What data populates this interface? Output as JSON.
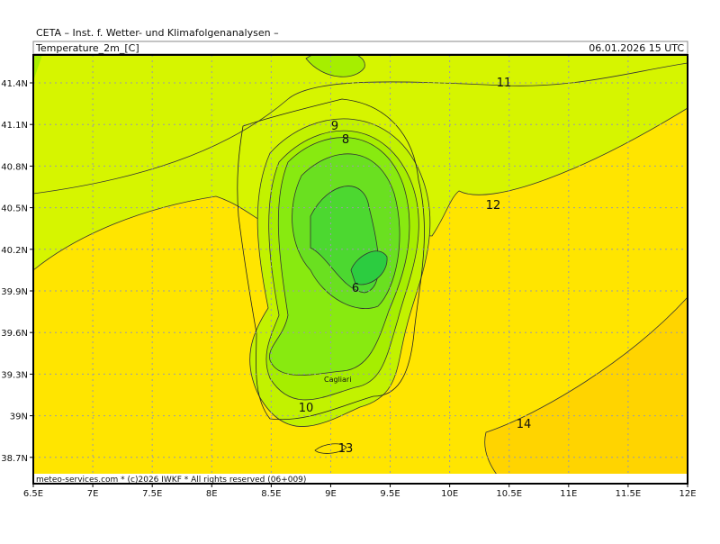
{
  "header": {
    "institute": "CETA – Inst. f. Wetter- und Klimafolgenanalysen –",
    "field": "Temperature_2m_[C]",
    "time": "06.01.2026 15 UTC"
  },
  "lat_ticks": [
    {
      "value": 41.4,
      "label": "41.4N"
    },
    {
      "value": 41.1,
      "label": "41.1N"
    },
    {
      "value": 40.8,
      "label": "40.8N"
    },
    {
      "value": 40.5,
      "label": "40.5N"
    },
    {
      "value": 40.2,
      "label": "40.2N"
    },
    {
      "value": 39.9,
      "label": "39.9N"
    },
    {
      "value": 39.6,
      "label": "39.6N"
    },
    {
      "value": 39.3,
      "label": "39.3N"
    },
    {
      "value": 39,
      "label": "39N"
    },
    {
      "value": 38.7,
      "label": "38.7N"
    }
  ],
  "lon_ticks": [
    {
      "value": 6.5,
      "label": "6.5E"
    },
    {
      "value": 7,
      "label": "7E"
    },
    {
      "value": 7.5,
      "label": "7.5E"
    },
    {
      "value": 8,
      "label": "8E"
    },
    {
      "value": 8.5,
      "label": "8.5E"
    },
    {
      "value": 9,
      "label": "9E"
    },
    {
      "value": 9.5,
      "label": "9.5E"
    },
    {
      "value": 10,
      "label": "10E"
    },
    {
      "value": 10.5,
      "label": "10.5E"
    },
    {
      "value": 11,
      "label": "11E"
    },
    {
      "value": 11.5,
      "label": "11.5E"
    },
    {
      "value": 12,
      "label": "12E"
    }
  ],
  "contour_labels": [
    11,
    12,
    9,
    8,
    6,
    10,
    13,
    14
  ],
  "city": "Cagliari",
  "footer": "meteo-services.com * (c)2026 IWKF * All rights reserved (06+009)"
}
